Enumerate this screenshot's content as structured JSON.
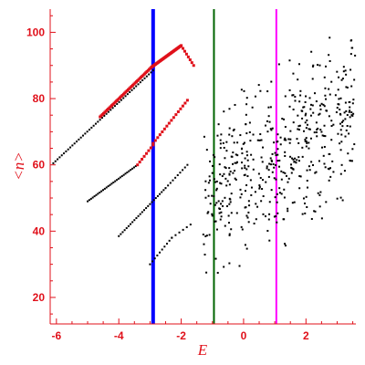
{
  "chart_data": {
    "type": "scatter",
    "title": "",
    "xlabel": "E",
    "ylabel": "<n>",
    "xlim": [
      -6.2,
      3.6
    ],
    "ylim": [
      12,
      107
    ],
    "x_ticks": [
      -6,
      -4,
      -2,
      0,
      2
    ],
    "y_ticks": [
      20,
      40,
      60,
      80,
      100
    ],
    "grid": false,
    "legend": "none",
    "colors": {
      "axis": "#e0101a",
      "sequence_black": "#000000",
      "sequence_red": "#e0101a",
      "line_blue": "#0000ff",
      "line_green": "#006400",
      "line_magenta": "#ff00ff"
    },
    "vertical_lines": [
      {
        "x": -2.9,
        "color": "#0000ff"
      },
      {
        "x": -0.95,
        "color": "#006400"
      },
      {
        "x": 1.05,
        "color": "#ff00ff"
      }
    ],
    "band_segments": [
      {
        "x0": -6.1,
        "y0": 60.5,
        "x1": -2.9,
        "y1": 88.5,
        "n": 48,
        "color": "black"
      },
      {
        "x0": -4.6,
        "y0": 74.5,
        "x1": -2.95,
        "y1": 89.5,
        "n": 45,
        "color": "red"
      },
      {
        "x0": -2.95,
        "y0": 89.5,
        "x1": -2.0,
        "y1": 96.0,
        "n": 45,
        "color": "red"
      },
      {
        "x0": -2.0,
        "y0": 96.0,
        "x1": -1.6,
        "y1": 90.0,
        "n": 8,
        "color": "red"
      },
      {
        "x0": -5.0,
        "y0": 49.0,
        "x1": -3.4,
        "y1": 60.0,
        "n": 30,
        "color": "black"
      },
      {
        "x0": -3.4,
        "y0": 60.0,
        "x1": -2.9,
        "y1": 66.0,
        "n": 8,
        "color": "red"
      },
      {
        "x0": -2.9,
        "y0": 66.5,
        "x1": -1.8,
        "y1": 79.5,
        "n": 16,
        "color": "red"
      },
      {
        "x0": -4.0,
        "y0": 38.5,
        "x1": -2.5,
        "y1": 53.0,
        "n": 25,
        "color": "black"
      },
      {
        "x0": -2.5,
        "y0": 53.0,
        "x1": -1.8,
        "y1": 60.0,
        "n": 10,
        "color": "black"
      },
      {
        "x0": -3.0,
        "y0": 30.0,
        "x1": -2.3,
        "y1": 38.0,
        "n": 10,
        "color": "black"
      },
      {
        "x0": -2.3,
        "y0": 38.0,
        "x1": -1.7,
        "y1": 42.0,
        "n": 6,
        "color": "black"
      }
    ],
    "scatter_region": {
      "x_range": [
        -1.3,
        3.6
      ],
      "y_center_at_xmin": 50,
      "y_center_slope": 5.5,
      "spread": 14,
      "n": 520,
      "color": "black"
    }
  }
}
